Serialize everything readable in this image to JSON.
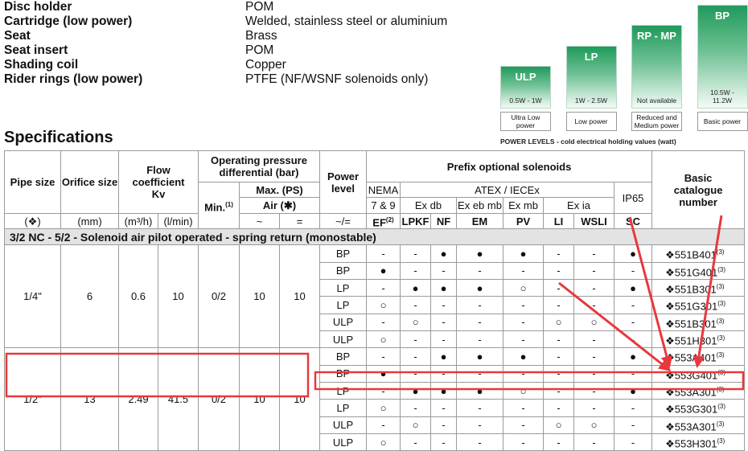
{
  "materials": [
    {
      "label": "Disc holder",
      "value": "POM"
    },
    {
      "label": "Cartridge (low power)",
      "value": "Welded, stainless steel or aluminium"
    },
    {
      "label": "Seat",
      "value": "Brass"
    },
    {
      "label": "Seat insert",
      "value": "POM"
    },
    {
      "label": "Shading coil",
      "value": "Copper"
    },
    {
      "label": "Rider rings (low power)",
      "value": "PTFE (NF/WSNF solenoids only)"
    }
  ],
  "power_levels": {
    "items": [
      {
        "code": "ULP",
        "range": "0.5W - 1W",
        "description": "Ultra Low power"
      },
      {
        "code": "LP",
        "range": "1W - 2.5W",
        "description": "Low power"
      },
      {
        "code": "RP - MP",
        "range": "Not available",
        "description": "Reduced and Medium power"
      },
      {
        "code": "BP",
        "range": "10.5W - 11.2W",
        "description": "Basic power"
      }
    ],
    "caption": "POWER LEVELS - cold electrical holding values (watt)"
  },
  "section_title": "Specifications",
  "table": {
    "headers": {
      "pipe_size": "Pipe size",
      "orifice_size": "Orifice size",
      "flow_coefficient": "Flow coefficient Kv",
      "operating_pressure": "Operating pressure differential (bar)",
      "min": "Min.",
      "min_note": "(1)",
      "max": "Max. (PS)",
      "air": "Air (✱)",
      "power_level": "Power level",
      "prefix": "Prefix optional solenoids",
      "nema": "NEMA",
      "nema_class": "7 & 9",
      "atex": "ATEX / IECEx",
      "ex_db": "Ex db",
      "ex_eb_mb": "Ex eb mb",
      "ex_mb": "Ex mb",
      "ex_ia": "Ex ia",
      "ip65": "IP65",
      "catalogue": "Basic catalogue number",
      "units": [
        "(❖)",
        "(mm)",
        "(m³/h)",
        "(l/min)",
        "~",
        "=",
        "~/="
      ],
      "solenoids": [
        "EF",
        "LPKF",
        "NF",
        "EM",
        "PV",
        "LI",
        "WSLI",
        "SC"
      ],
      "ef_note": "(2)"
    },
    "section": "3/2 NC - 5/2 - Solenoid air pilot operated - spring return (monostable)",
    "groups": [
      {
        "pipe_size": "1/4\"",
        "orifice": 6,
        "kv_m3h": 0.6,
        "kv_lmin": 10,
        "min": "0/2",
        "max_ac": 10,
        "max_dc": 10,
        "rows": [
          {
            "power": "BP",
            "solenoids": [
              "-",
              "-",
              "●",
              "●",
              "●",
              "-",
              "-",
              "●"
            ],
            "catalogue": "❖551B401",
            "note": "(3)"
          },
          {
            "power": "BP",
            "solenoids": [
              "●",
              "-",
              "-",
              "-",
              "-",
              "-",
              "-",
              "-"
            ],
            "catalogue": "❖551G401",
            "note": "(3)"
          },
          {
            "power": "LP",
            "solenoids": [
              "-",
              "●",
              "●",
              "●",
              "○",
              "-",
              "-",
              "●"
            ],
            "catalogue": "❖551B301",
            "note": "(3)"
          },
          {
            "power": "LP",
            "solenoids": [
              "○",
              "-",
              "-",
              "-",
              "-",
              "-",
              "-",
              "-"
            ],
            "catalogue": "❖551G301",
            "note": "(3)"
          },
          {
            "power": "ULP",
            "solenoids": [
              "-",
              "○",
              "-",
              "-",
              "-",
              "○",
              "○",
              "-"
            ],
            "catalogue": "❖551B301",
            "note": "(3)"
          },
          {
            "power": "ULP",
            "solenoids": [
              "○",
              "-",
              "-",
              "-",
              "-",
              "-",
              "-",
              "-"
            ],
            "catalogue": "❖551H301",
            "note": "(3)"
          }
        ]
      },
      {
        "pipe_size": "1/2\"",
        "orifice": 13,
        "kv_m3h": 2.49,
        "kv_lmin": 41.5,
        "min": "0/2",
        "max_ac": 10,
        "max_dc": 10,
        "rows": [
          {
            "power": "BP",
            "solenoids": [
              "-",
              "-",
              "●",
              "●",
              "●",
              "-",
              "-",
              "●"
            ],
            "catalogue": "❖553A401",
            "note": "(3)"
          },
          {
            "power": "BP",
            "solenoids": [
              "●",
              "-",
              "-",
              "-",
              "-",
              "-",
              "-",
              "-"
            ],
            "catalogue": "❖553G401",
            "note": "(3)"
          },
          {
            "power": "LP",
            "solenoids": [
              "-",
              "●",
              "●",
              "●",
              "○",
              "-",
              "-",
              "●"
            ],
            "catalogue": "❖553A301",
            "note": "(3)"
          },
          {
            "power": "LP",
            "solenoids": [
              "○",
              "-",
              "-",
              "-",
              "-",
              "-",
              "-",
              "-"
            ],
            "catalogue": "❖553G301",
            "note": "(3)"
          },
          {
            "power": "ULP",
            "solenoids": [
              "-",
              "○",
              "-",
              "-",
              "-",
              "○",
              "○",
              "-"
            ],
            "catalogue": "❖553A301",
            "note": "(3)"
          },
          {
            "power": "ULP",
            "solenoids": [
              "○",
              "-",
              "-",
              "-",
              "-",
              "-",
              "-",
              "-"
            ],
            "catalogue": "❖553H301",
            "note": "(3)"
          }
        ]
      }
    ]
  }
}
